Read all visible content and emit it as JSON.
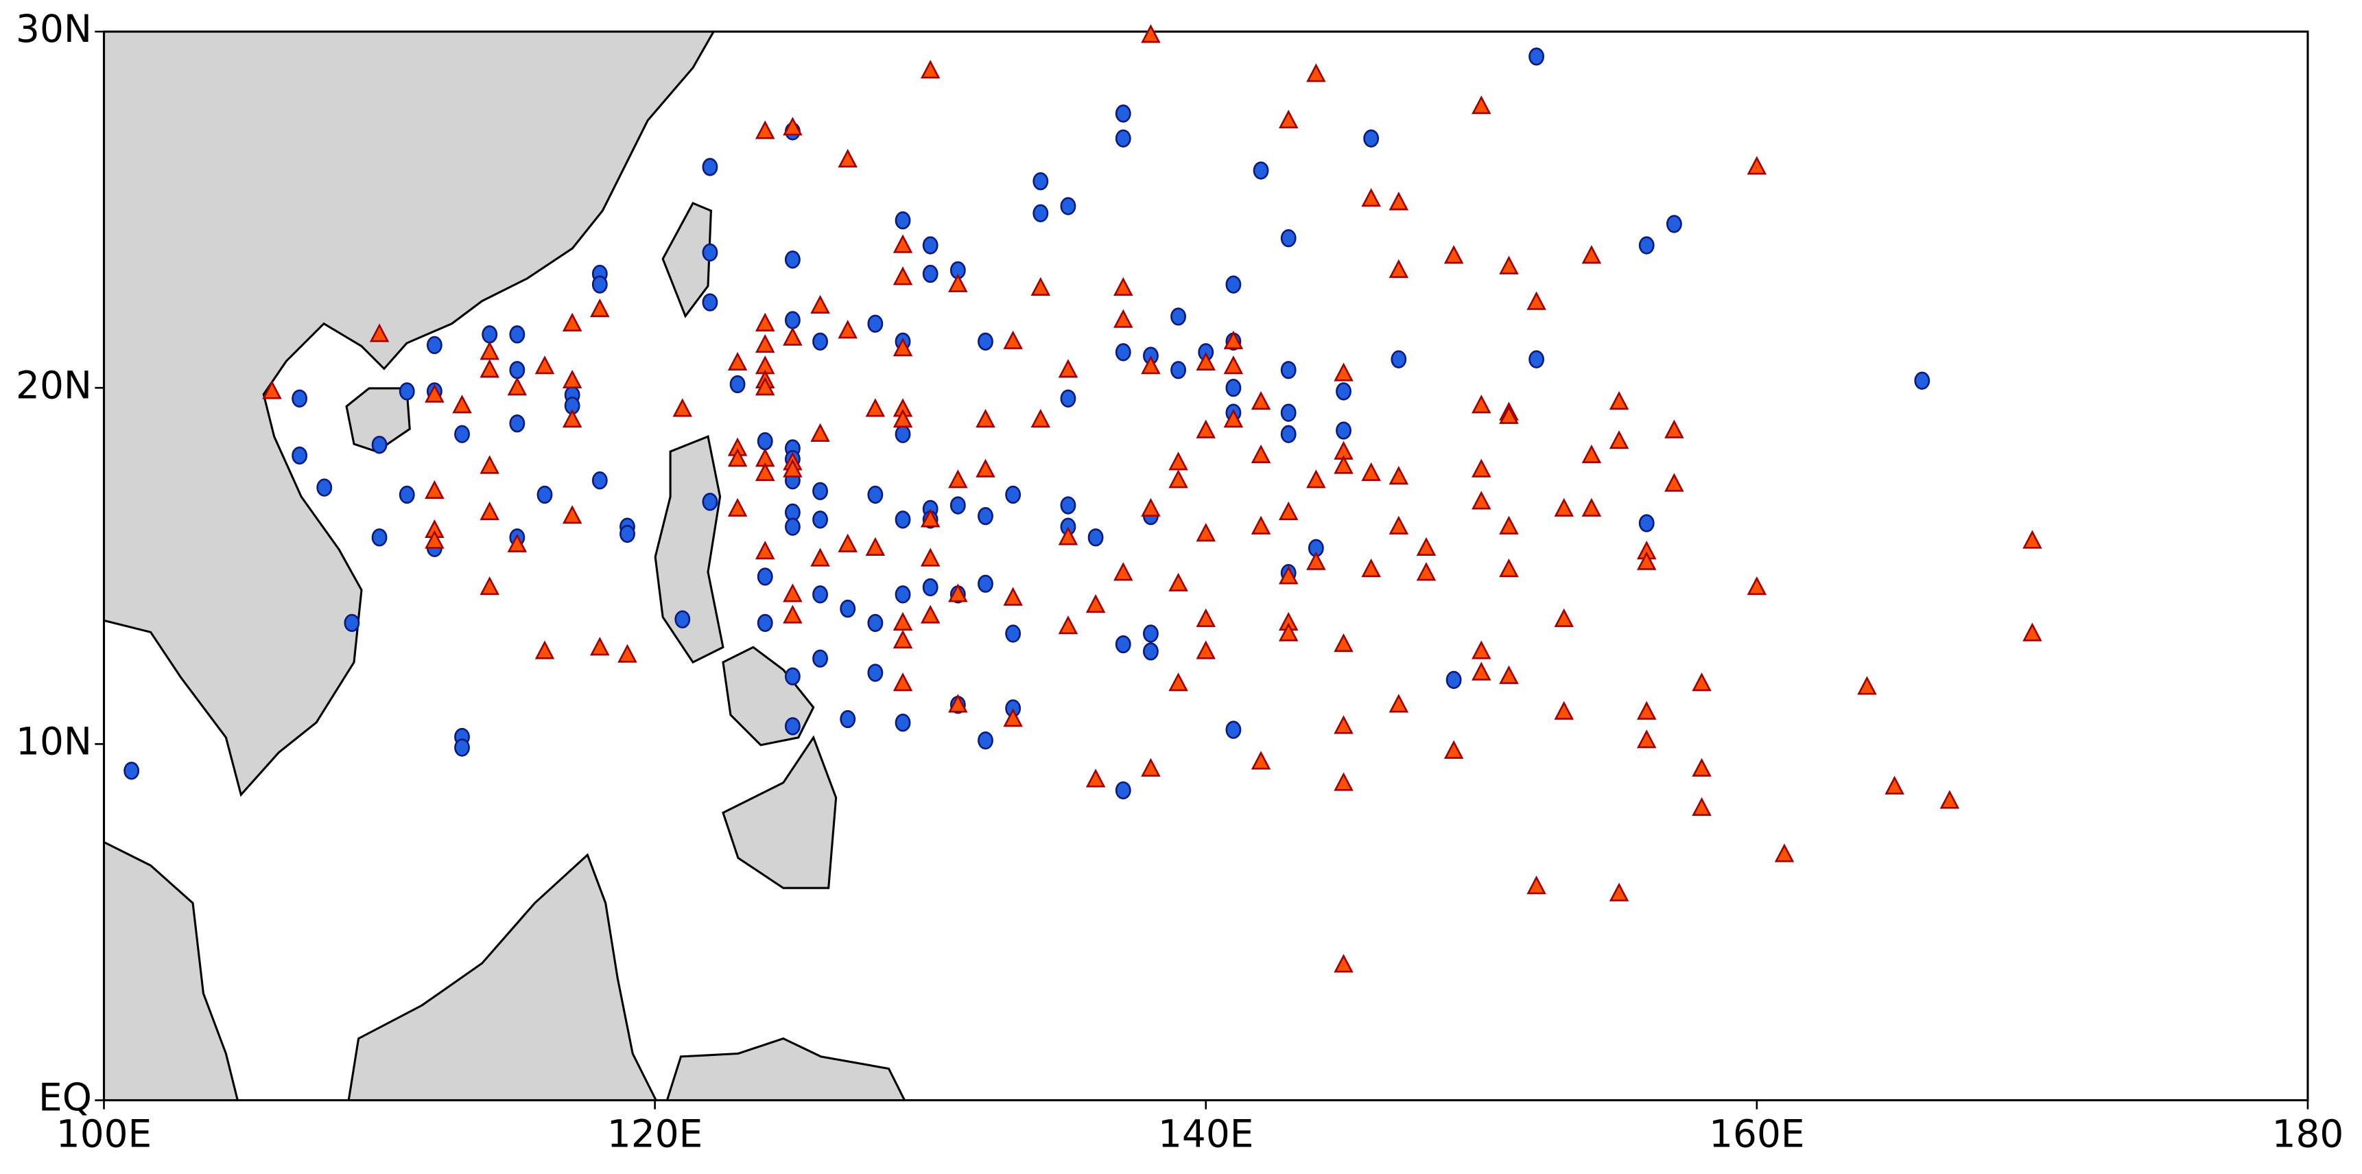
{
  "chart_data": {
    "type": "scatter",
    "xlim": [
      100,
      180
    ],
    "ylim": [
      0,
      30
    ],
    "xticks": [
      {
        "value": 100,
        "label": "100E"
      },
      {
        "value": 120,
        "label": "120E"
      },
      {
        "value": 140,
        "label": "140E"
      },
      {
        "value": 160,
        "label": "160E"
      },
      {
        "value": 180,
        "label": "180"
      }
    ],
    "yticks": [
      {
        "value": 0,
        "label": "EQ"
      },
      {
        "value": 10,
        "label": "10N"
      },
      {
        "value": 20,
        "label": "20N"
      },
      {
        "value": 30,
        "label": "30N"
      }
    ],
    "series": [
      {
        "color": "#1f5fe0",
        "marker": "circle",
        "x": [
          101,
          107.1,
          107.1,
          108,
          109,
          110,
          110,
          111,
          111,
          112,
          112,
          112,
          113,
          113,
          113,
          114,
          115,
          115,
          115,
          115,
          116,
          117,
          117,
          118,
          118,
          118,
          119,
          119,
          122,
          122,
          122,
          122,
          121,
          123,
          124,
          124,
          124,
          125,
          125,
          125,
          125,
          125,
          125,
          125,
          125,
          125,
          125,
          126,
          126,
          126,
          126,
          126,
          127,
          127,
          128,
          128,
          128,
          128,
          129,
          129,
          129,
          129,
          129,
          129,
          130,
          130,
          130,
          130,
          130,
          131,
          131,
          131,
          131,
          132,
          132,
          132,
          132,
          133,
          133,
          133,
          134,
          134,
          135,
          135,
          135,
          135,
          136,
          137,
          137,
          137,
          137,
          137,
          138,
          138,
          138,
          138,
          139,
          139,
          140,
          141,
          141,
          141,
          141,
          141,
          142,
          143,
          143,
          143,
          143,
          143,
          144,
          145,
          145,
          146,
          147,
          149,
          152,
          152,
          156,
          156,
          157,
          166
        ],
        "values": [
          9.25,
          19.7,
          18.1,
          17.2,
          13.4,
          18.4,
          15.8,
          19.9,
          17.0,
          21.2,
          19.9,
          15.5,
          18.7,
          10.2,
          9.9,
          21.5,
          21.5,
          20.5,
          19.0,
          15.8,
          17.0,
          19.8,
          19.5,
          23.2,
          22.9,
          17.4,
          16.1,
          15.9,
          26.2,
          23.8,
          22.4,
          16.8,
          13.5,
          20.1,
          18.5,
          14.7,
          13.4,
          27.2,
          23.6,
          21.9,
          18.3,
          18.0,
          17.4,
          16.5,
          16.1,
          11.9,
          10.5,
          21.3,
          17.1,
          16.3,
          14.2,
          12.4,
          13.8,
          10.7,
          21.8,
          17.0,
          13.4,
          12.0,
          24.7,
          21.3,
          18.7,
          16.3,
          14.2,
          10.6,
          24.0,
          23.2,
          16.6,
          16.3,
          14.4,
          23.3,
          16.7,
          14.2,
          11.1,
          21.3,
          16.4,
          14.5,
          10.1,
          17.0,
          13.1,
          11.0,
          25.8,
          24.9,
          25.1,
          19.7,
          16.7,
          16.1,
          15.8,
          27.7,
          27.0,
          21.0,
          12.8,
          8.7,
          20.9,
          16.4,
          13.1,
          12.6,
          22.0,
          20.5,
          21.0,
          22.9,
          21.3,
          20.0,
          19.3,
          10.4,
          26.1,
          24.2,
          20.5,
          19.3,
          18.7,
          14.8,
          15.5,
          19.9,
          18.8,
          27.0,
          20.8,
          11.8,
          29.3,
          20.8,
          24.0,
          16.2,
          24.6,
          20.2
        ]
      },
      {
        "color": "#ff5000",
        "marker": "triangle",
        "x": [
          106.1,
          110,
          112,
          112,
          112,
          112,
          113,
          114,
          114,
          114,
          114,
          114,
          115,
          115,
          116,
          116,
          117,
          117,
          117,
          117,
          118,
          118,
          119,
          121,
          123,
          123,
          123,
          123,
          124,
          124,
          124,
          124,
          124,
          124,
          124,
          124,
          124,
          125,
          125,
          125,
          125,
          125,
          125,
          126,
          126,
          126,
          127,
          127,
          127,
          128,
          128,
          129,
          129,
          129,
          129,
          129,
          129,
          129,
          129,
          130,
          130,
          130,
          130,
          131,
          131,
          131,
          131,
          132,
          132,
          133,
          133,
          133,
          134,
          134,
          135,
          135,
          135,
          136,
          136,
          137,
          137,
          137,
          138,
          138,
          138,
          138,
          139,
          139,
          139,
          139,
          140,
          140,
          140,
          140,
          140,
          141,
          141,
          141,
          142,
          142,
          142,
          142,
          143,
          143,
          143,
          143,
          143,
          144,
          144,
          144,
          145,
          145,
          145,
          145,
          145,
          145,
          145,
          146,
          146,
          146,
          147,
          147,
          147,
          147,
          147,
          148,
          148,
          149,
          149,
          150,
          150,
          150,
          150,
          150,
          150,
          151,
          151,
          151,
          151,
          151,
          151,
          152,
          152,
          153,
          153,
          153,
          154,
          154,
          154,
          155,
          155,
          155,
          156,
          156,
          156,
          156,
          157,
          157,
          158,
          158,
          158,
          160,
          160,
          161,
          164,
          165,
          167,
          170,
          170
        ],
        "values": [
          19.9,
          21.5,
          19.8,
          17.1,
          16.0,
          15.7,
          19.5,
          21.0,
          20.5,
          17.8,
          16.5,
          14.4,
          20.0,
          15.6,
          20.6,
          12.6,
          21.8,
          20.2,
          19.1,
          16.4,
          22.2,
          12.7,
          12.5,
          19.4,
          20.7,
          18.3,
          18.0,
          16.6,
          27.2,
          21.8,
          21.2,
          20.6,
          20.2,
          20.0,
          18.0,
          17.6,
          15.4,
          27.3,
          21.4,
          17.9,
          17.7,
          14.2,
          13.6,
          22.3,
          18.7,
          15.2,
          26.4,
          21.6,
          15.6,
          19.4,
          15.5,
          24.0,
          23.1,
          21.1,
          19.4,
          19.1,
          13.4,
          12.9,
          11.7,
          28.9,
          16.3,
          15.2,
          13.6,
          22.9,
          17.4,
          14.2,
          11.1,
          19.1,
          17.7,
          21.3,
          14.1,
          10.7,
          22.8,
          19.1,
          20.5,
          15.8,
          13.3,
          13.9,
          9.0,
          22.8,
          21.9,
          14.8,
          29.9,
          20.6,
          16.6,
          9.3,
          17.9,
          17.4,
          14.5,
          11.7,
          20.7,
          18.8,
          15.9,
          13.5,
          12.6,
          21.3,
          20.6,
          19.1,
          19.6,
          18.1,
          16.1,
          9.5,
          27.5,
          16.5,
          14.7,
          13.4,
          13.1,
          28.8,
          17.4,
          15.1,
          20.4,
          18.2,
          17.8,
          12.8,
          10.5,
          8.9,
          3.8,
          25.3,
          17.6,
          14.9,
          25.2,
          23.3,
          17.5,
          16.1,
          11.1,
          15.5,
          14.8,
          23.7,
          9.8,
          27.9,
          19.5,
          17.7,
          16.8,
          12.6,
          12.0,
          23.4,
          19.3,
          19.2,
          16.1,
          14.9,
          11.9,
          22.4,
          6.0,
          16.6,
          13.5,
          10.9,
          23.7,
          18.1,
          16.6,
          19.6,
          18.5,
          5.8,
          15.4,
          15.1,
          10.9,
          10.1,
          18.8,
          17.3,
          11.7,
          9.3,
          8.2,
          26.2,
          14.4,
          6.9,
          11.6,
          8.8,
          8.4,
          15.7,
          13.1
        ]
      }
    ]
  }
}
